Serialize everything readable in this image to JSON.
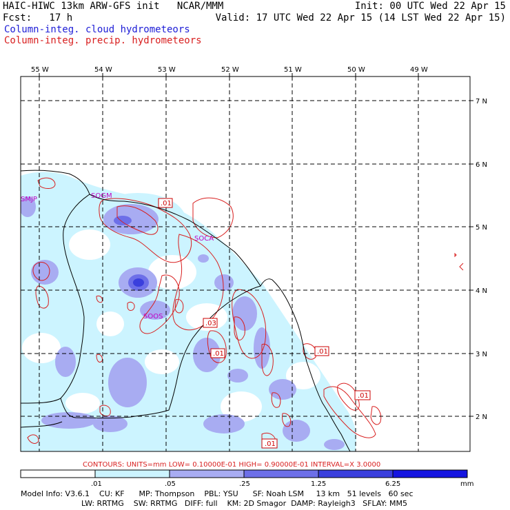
{
  "header": {
    "line1_left": "HAIC-HIWC 13km ARW-GFS init   NCAR/MMM",
    "line1_right": "Init: 00 UTC Wed 22 Apr 15",
    "line2_left": "Fcst:   17 h",
    "line2_right": "Valid: 17 UTC Wed 22 Apr 15 (14 LST Wed 22 Apr 15)",
    "legend_blue": "Column-integ. cloud hydrometeors",
    "legend_red": "Column-integ. precip. hydrometeors"
  },
  "colors": {
    "cloud_fill": [
      "#ccf4ff",
      "#a8acf2",
      "#6d6fe8",
      "#3a3fdd",
      "#1515e0"
    ],
    "precip_contour": "#d81e1e",
    "stations": "#c000c0"
  },
  "map": {
    "lon_labels": [
      "55 W",
      "54 W",
      "53 W",
      "52 W",
      "51 W",
      "50 W",
      "49 W"
    ],
    "lat_labels": [
      "7 N",
      "6 N",
      "5 N",
      "4 N",
      "3 N",
      "2 N"
    ],
    "stations": [
      "SMJP",
      "SOGM",
      "SOCA",
      "SOOS"
    ],
    "contour_labels": [
      ".01",
      ".03",
      ".01",
      ".01",
      ".01",
      ".01"
    ]
  },
  "contours_info": "CONTOURS:  UNITS=mm  LOW= 0.10000E-01  HIGH= 0.90000E-01  INTERVAL=X  3.0000",
  "colorbar": {
    "ticks": [
      ".01",
      ".05",
      ".25",
      "1.25",
      "6.25"
    ],
    "unit": "mm"
  },
  "model_info": {
    "line1": "Model Info: V3.6.1    CU: KF      MP: Thompson    PBL: YSU      SF: Noah LSM     13 km   51 levels   60 sec",
    "line2": "LW: RRTMG    SW: RRTMG   DIFF: full    KM: 2D Smagor  DAMP: Rayleigh3   SFLAY: MM5"
  }
}
